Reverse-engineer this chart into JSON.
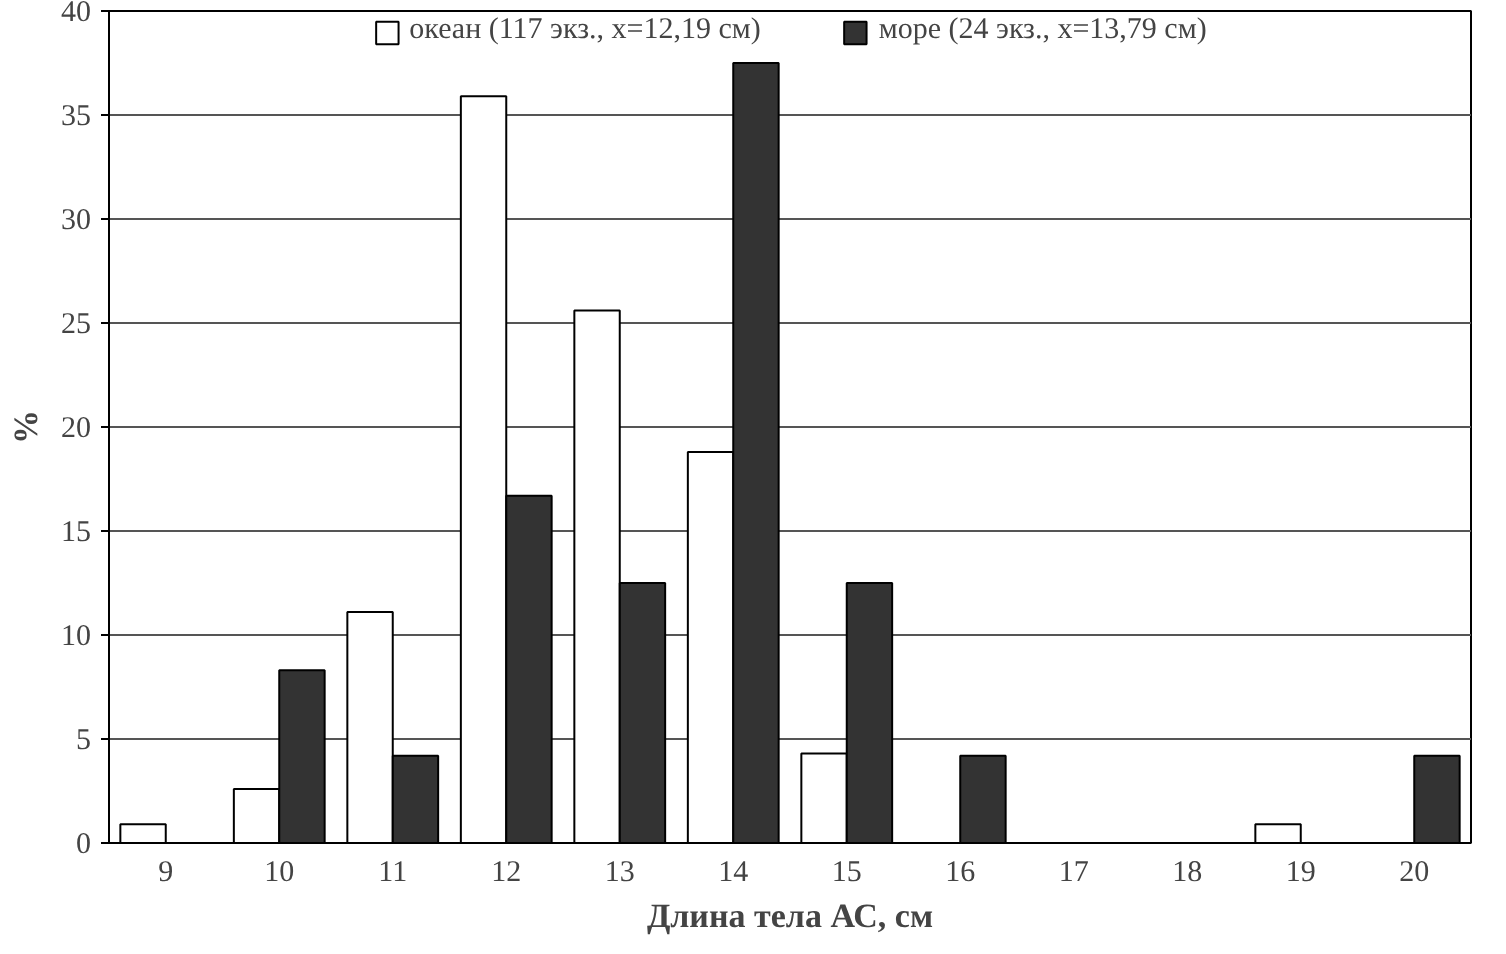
{
  "chart_data": {
    "type": "bar",
    "xlabel": "Длина тела АС, см",
    "ylabel": "%",
    "categories": [
      "9",
      "10",
      "11",
      "12",
      "13",
      "14",
      "15",
      "16",
      "17",
      "18",
      "19",
      "20"
    ],
    "series": [
      {
        "name": "океан (117 экз., x=12,19 см)",
        "color": "#ffffff",
        "values": [
          0.9,
          2.6,
          11.1,
          35.9,
          25.6,
          18.8,
          4.3,
          0,
          0,
          0,
          0.9,
          0
        ]
      },
      {
        "name": "море (24 экз., x=13,79 см)",
        "color": "#333333",
        "values": [
          0,
          8.3,
          4.2,
          16.7,
          12.5,
          37.5,
          12.5,
          4.2,
          0,
          0,
          0,
          4.2
        ]
      }
    ],
    "ylim": [
      0,
      40
    ],
    "yticks": [
      0,
      5,
      10,
      15,
      20,
      25,
      30,
      35,
      40
    ],
    "grid": "y",
    "legend": "top"
  }
}
